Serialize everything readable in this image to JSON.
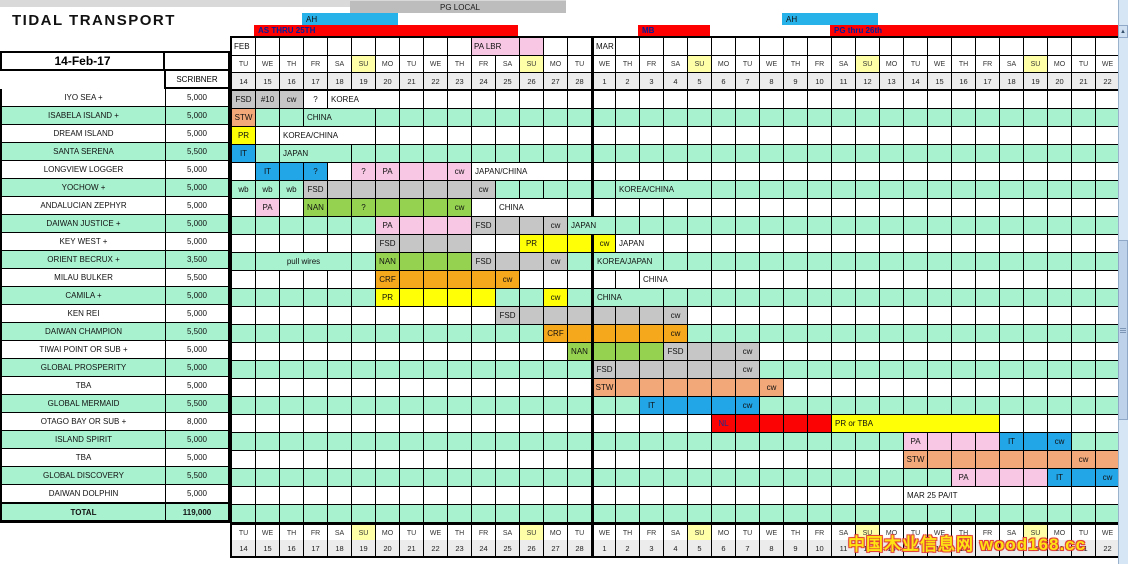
{
  "header": {
    "title": "TIDAL TRANSPORT",
    "date_label": "14-Feb-17",
    "scribner_label": "SCRIBNER"
  },
  "colors": {
    "white": "#ffffff",
    "green": "#a9f2d0",
    "gray": "#c6c6c6",
    "yellow": "#ffff05",
    "pale_yellow": "#ffffa8",
    "olive": "#94d24f",
    "blue": "#22a6e8",
    "pink": "#f7c7e3",
    "orange": "#f6a81c",
    "salmon": "#f2a878",
    "red": "#fb0205",
    "date_gray": "#ececec",
    "bar_gray": "#bdbdbd",
    "bar_blue": "#27b3ea",
    "bar_red": "#fe0000"
  },
  "bars": [
    {
      "label": "PG LOCAL",
      "color": "gray",
      "c0": 5,
      "c1": 13,
      "tier": 0
    },
    {
      "label": "AH",
      "color": "blue",
      "c0": 3,
      "c1": 6,
      "tier": 1
    },
    {
      "label": "AS THRU 25TH",
      "color": "red",
      "c0": 1,
      "c1": 11,
      "tier": 2
    },
    {
      "label": "MB",
      "color": "red",
      "c0": 17,
      "c1": 19,
      "tier": 2
    },
    {
      "label": "AH",
      "color": "blue",
      "c0": 23,
      "c1": 26,
      "tier": 1
    },
    {
      "label": "PG thru 26th",
      "color": "red",
      "c0": 25,
      "c1": 36,
      "tier": 2
    }
  ],
  "month_row": {
    "pa_lbr_label": "PA LBR",
    "pa_lbr_col": 10,
    "pa_lbr_span": 2,
    "extra_pink_col": 12
  },
  "columns": [
    {
      "m": "FEB",
      "d": 14,
      "w": "TU"
    },
    {
      "d": 15,
      "w": "WE"
    },
    {
      "d": 16,
      "w": "TH"
    },
    {
      "d": 17,
      "w": "FR"
    },
    {
      "d": 18,
      "w": "SA"
    },
    {
      "d": 19,
      "w": "SU"
    },
    {
      "d": 20,
      "w": "MO"
    },
    {
      "d": 21,
      "w": "TU"
    },
    {
      "d": 22,
      "w": "WE"
    },
    {
      "d": 23,
      "w": "TH"
    },
    {
      "d": 24,
      "w": "FR"
    },
    {
      "d": 25,
      "w": "SA"
    },
    {
      "d": 26,
      "w": "SU"
    },
    {
      "d": 27,
      "w": "MO"
    },
    {
      "d": 28,
      "w": "TU"
    },
    {
      "m": "MAR",
      "d": 1,
      "w": "WE"
    },
    {
      "d": 2,
      "w": "TH"
    },
    {
      "d": 3,
      "w": "FR"
    },
    {
      "d": 4,
      "w": "SA"
    },
    {
      "d": 5,
      "w": "SU"
    },
    {
      "d": 6,
      "w": "MO"
    },
    {
      "d": 7,
      "w": "TU"
    },
    {
      "d": 8,
      "w": "WE"
    },
    {
      "d": 9,
      "w": "TH"
    },
    {
      "d": 10,
      "w": "FR"
    },
    {
      "d": 11,
      "w": "SA"
    },
    {
      "d": 12,
      "w": "SU"
    },
    {
      "d": 13,
      "w": "MO"
    },
    {
      "d": 14,
      "w": "TU"
    },
    {
      "d": 15,
      "w": "WE"
    },
    {
      "d": 16,
      "w": "TH"
    },
    {
      "d": 17,
      "w": "FR"
    },
    {
      "d": 18,
      "w": "SA"
    },
    {
      "d": 19,
      "w": "SU"
    },
    {
      "d": 20,
      "w": "MO"
    },
    {
      "d": 21,
      "w": "TU"
    },
    {
      "d": 22,
      "w": "WE"
    }
  ],
  "rows": [
    {
      "name": "IYO SEA +",
      "qty": "5,000",
      "bg": "white",
      "fills": [
        {
          "c": 0,
          "t": "FSD",
          "b": "gray"
        },
        {
          "c": 1,
          "t": "#10",
          "b": "gray"
        },
        {
          "c": 2,
          "t": "cw",
          "b": "gray"
        },
        {
          "c": 3,
          "t": "?"
        },
        {
          "c": 4,
          "s": 3,
          "t": "KOREA",
          "a": "l"
        }
      ]
    },
    {
      "name": "ISABELA ISLAND +",
      "qty": "5,000",
      "bg": "green",
      "fills": [
        {
          "c": 0,
          "t": "STW",
          "b": "salmon"
        },
        {
          "c": 3,
          "s": 3,
          "t": "CHINA",
          "a": "l"
        }
      ]
    },
    {
      "name": "DREAM ISLAND",
      "qty": "5,000",
      "bg": "white",
      "fills": [
        {
          "c": 0,
          "t": "PR",
          "b": "yellow"
        },
        {
          "c": 2,
          "s": 4,
          "t": "KOREA/CHINA",
          "a": "l"
        }
      ]
    },
    {
      "name": "SANTA SERENA",
      "qty": "5,500",
      "bg": "green",
      "fills": [
        {
          "c": 0,
          "t": "IT",
          "b": "blue"
        },
        {
          "c": 2,
          "s": 3,
          "t": "JAPAN",
          "a": "l"
        }
      ]
    },
    {
      "name": "LONGVIEW LOGGER",
      "qty": "5,000",
      "bg": "white",
      "fills": [
        {
          "c": 1,
          "t": "IT",
          "b": "blue"
        },
        {
          "c": 2,
          "b": "blue"
        },
        {
          "c": 3,
          "t": "?",
          "b": "blue"
        },
        {
          "c": 5,
          "t": "?",
          "b": "pink"
        },
        {
          "c": 6,
          "t": "PA",
          "b": "pink"
        },
        {
          "c": 7,
          "b": "pink"
        },
        {
          "c": 8,
          "b": "pink"
        },
        {
          "c": 9,
          "t": "cw",
          "b": "pink"
        },
        {
          "c": 10,
          "s": 4,
          "t": "JAPAN/CHINA",
          "a": "l"
        }
      ]
    },
    {
      "name": "YOCHOW +",
      "qty": "5,000",
      "bg": "green",
      "fills": [
        {
          "c": 0,
          "t": "wb"
        },
        {
          "c": 1,
          "t": "wb"
        },
        {
          "c": 2,
          "t": "wb"
        },
        {
          "c": 3,
          "t": "FSD",
          "b": "gray"
        },
        {
          "c": 4,
          "b": "gray"
        },
        {
          "c": 5,
          "b": "gray"
        },
        {
          "c": 6,
          "b": "gray"
        },
        {
          "c": 7,
          "b": "gray"
        },
        {
          "c": 8,
          "b": "gray"
        },
        {
          "c": 9,
          "b": "gray"
        },
        {
          "c": 10,
          "t": "cw",
          "b": "gray"
        },
        {
          "c": 16,
          "s": 4,
          "t": "KOREA/CHINA",
          "a": "l"
        }
      ]
    },
    {
      "name": "ANDALUCIAN ZEPHYR",
      "qty": "5,000",
      "bg": "white",
      "fills": [
        {
          "c": 1,
          "t": "PA",
          "b": "pink"
        },
        {
          "c": 3,
          "t": "NAN",
          "b": "olive"
        },
        {
          "c": 4,
          "b": "olive"
        },
        {
          "c": 5,
          "t": "?",
          "b": "olive"
        },
        {
          "c": 6,
          "b": "olive"
        },
        {
          "c": 7,
          "b": "olive"
        },
        {
          "c": 8,
          "b": "olive"
        },
        {
          "c": 9,
          "t": "cw",
          "b": "olive"
        },
        {
          "c": 11,
          "s": 3,
          "t": "CHINA",
          "a": "l"
        }
      ]
    },
    {
      "name": "DAIWAN JUSTICE +",
      "qty": "5,000",
      "bg": "green",
      "fills": [
        {
          "c": 6,
          "t": "PA",
          "b": "pink"
        },
        {
          "c": 7,
          "b": "pink"
        },
        {
          "c": 8,
          "b": "pink"
        },
        {
          "c": 9,
          "b": "pink"
        },
        {
          "c": 10,
          "t": "FSD",
          "b": "gray"
        },
        {
          "c": 11,
          "b": "gray"
        },
        {
          "c": 12,
          "b": "gray"
        },
        {
          "c": 13,
          "t": "cw",
          "b": "gray"
        },
        {
          "c": 14,
          "s": 2,
          "t": "JAPAN",
          "a": "l"
        }
      ]
    },
    {
      "name": "KEY WEST +",
      "qty": "5,000",
      "bg": "white",
      "fills": [
        {
          "c": 6,
          "t": "FSD",
          "b": "gray"
        },
        {
          "c": 7,
          "b": "gray"
        },
        {
          "c": 8,
          "b": "gray"
        },
        {
          "c": 9,
          "b": "gray"
        },
        {
          "c": 12,
          "t": "PR",
          "b": "yellow"
        },
        {
          "c": 13,
          "b": "yellow"
        },
        {
          "c": 14,
          "b": "yellow"
        },
        {
          "c": 15,
          "t": "cw",
          "b": "yellow"
        },
        {
          "c": 16,
          "s": 2,
          "t": "JAPAN",
          "a": "l"
        }
      ]
    },
    {
      "name": "ORIENT BECRUX +",
      "qty": "3,500",
      "bg": "green",
      "fills": [
        {
          "c": 1,
          "s": 4,
          "t": "pull wires"
        },
        {
          "c": 6,
          "t": "NAN",
          "b": "olive"
        },
        {
          "c": 7,
          "b": "olive"
        },
        {
          "c": 8,
          "b": "olive"
        },
        {
          "c": 9,
          "b": "olive"
        },
        {
          "c": 10,
          "t": "FSD",
          "b": "gray"
        },
        {
          "c": 11,
          "b": "gray"
        },
        {
          "c": 12,
          "b": "gray"
        },
        {
          "c": 13,
          "t": "cw",
          "b": "gray"
        },
        {
          "c": 15,
          "s": 3,
          "t": "KOREA/JAPAN",
          "a": "l"
        }
      ]
    },
    {
      "name": "MILAU BULKER",
      "qty": "5,500",
      "bg": "white",
      "fills": [
        {
          "c": 6,
          "t": "CRF",
          "b": "orange"
        },
        {
          "c": 7,
          "b": "orange"
        },
        {
          "c": 8,
          "b": "orange"
        },
        {
          "c": 9,
          "b": "orange"
        },
        {
          "c": 10,
          "b": "orange"
        },
        {
          "c": 11,
          "t": "cw",
          "b": "orange"
        },
        {
          "c": 17,
          "s": 3,
          "t": "CHINA",
          "a": "l"
        }
      ]
    },
    {
      "name": "CAMILA +",
      "qty": "5,000",
      "bg": "green",
      "fills": [
        {
          "c": 6,
          "t": "PR",
          "b": "yellow"
        },
        {
          "c": 7,
          "b": "yellow"
        },
        {
          "c": 8,
          "b": "yellow"
        },
        {
          "c": 9,
          "b": "yellow"
        },
        {
          "c": 10,
          "b": "yellow"
        },
        {
          "c": 13,
          "t": "cw",
          "b": "yellow"
        },
        {
          "c": 15,
          "s": 3,
          "t": "CHINA",
          "a": "l"
        }
      ]
    },
    {
      "name": "KEN REI",
      "qty": "5,000",
      "bg": "white",
      "fills": [
        {
          "c": 11,
          "t": "FSD",
          "b": "gray"
        },
        {
          "c": 12,
          "b": "gray"
        },
        {
          "c": 13,
          "b": "gray"
        },
        {
          "c": 14,
          "b": "gray"
        },
        {
          "c": 15,
          "b": "gray"
        },
        {
          "c": 16,
          "b": "gray"
        },
        {
          "c": 17,
          "b": "gray"
        },
        {
          "c": 18,
          "t": "cw",
          "b": "gray"
        }
      ]
    },
    {
      "name": "DAIWAN CHAMPION",
      "qty": "5,500",
      "bg": "green",
      "fills": [
        {
          "c": 13,
          "t": "CRF",
          "b": "orange"
        },
        {
          "c": 14,
          "b": "orange"
        },
        {
          "c": 15,
          "b": "orange"
        },
        {
          "c": 16,
          "b": "orange"
        },
        {
          "c": 17,
          "b": "orange"
        },
        {
          "c": 18,
          "t": "cw",
          "b": "orange"
        }
      ]
    },
    {
      "name": "TIWAI POINT OR SUB +",
      "qty": "5,000",
      "bg": "white",
      "fills": [
        {
          "c": 14,
          "t": "NAN",
          "b": "olive"
        },
        {
          "c": 15,
          "b": "olive"
        },
        {
          "c": 16,
          "b": "olive"
        },
        {
          "c": 17,
          "b": "olive"
        },
        {
          "c": 18,
          "t": "FSD",
          "b": "gray"
        },
        {
          "c": 19,
          "b": "gray"
        },
        {
          "c": 20,
          "b": "gray"
        },
        {
          "c": 21,
          "t": "cw",
          "b": "gray"
        }
      ]
    },
    {
      "name": "GLOBAL PROSPERITY",
      "qty": "5,000",
      "bg": "green",
      "fills": [
        {
          "c": 15,
          "t": "FSD",
          "b": "gray"
        },
        {
          "c": 16,
          "b": "gray"
        },
        {
          "c": 17,
          "b": "gray"
        },
        {
          "c": 18,
          "b": "gray"
        },
        {
          "c": 19,
          "b": "gray"
        },
        {
          "c": 20,
          "b": "gray"
        },
        {
          "c": 21,
          "t": "cw",
          "b": "gray"
        }
      ]
    },
    {
      "name": "TBA",
      "qty": "5,000",
      "bg": "white",
      "fills": [
        {
          "c": 15,
          "t": "STW",
          "b": "salmon"
        },
        {
          "c": 16,
          "b": "salmon"
        },
        {
          "c": 17,
          "b": "salmon"
        },
        {
          "c": 18,
          "b": "salmon"
        },
        {
          "c": 19,
          "b": "salmon"
        },
        {
          "c": 20,
          "b": "salmon"
        },
        {
          "c": 21,
          "b": "salmon"
        },
        {
          "c": 22,
          "t": "cw",
          "b": "salmon"
        }
      ]
    },
    {
      "name": "GLOBAL MERMAID",
      "qty": "5,500",
      "bg": "green",
      "fills": [
        {
          "c": 17,
          "t": "IT",
          "b": "blue"
        },
        {
          "c": 18,
          "b": "blue"
        },
        {
          "c": 19,
          "b": "blue"
        },
        {
          "c": 20,
          "b": "blue"
        },
        {
          "c": 21,
          "t": "cw",
          "b": "blue"
        }
      ]
    },
    {
      "name": "OTAGO BAY OR SUB +",
      "qty": "8,000",
      "bg": "white",
      "fills": [
        {
          "c": 20,
          "t": "NL",
          "b": "red"
        },
        {
          "c": 21,
          "b": "red"
        },
        {
          "c": 22,
          "b": "red"
        },
        {
          "c": 23,
          "b": "red"
        },
        {
          "c": 24,
          "b": "red"
        },
        {
          "c": 25,
          "s": 7,
          "t": "PR or TBA",
          "b": "yellow",
          "a": "l"
        }
      ]
    },
    {
      "name": "ISLAND SPIRIT",
      "qty": "5,000",
      "bg": "green",
      "fills": [
        {
          "c": 28,
          "t": "PA",
          "b": "pink"
        },
        {
          "c": 29,
          "b": "pink"
        },
        {
          "c": 30,
          "b": "pink"
        },
        {
          "c": 31,
          "b": "pink"
        },
        {
          "c": 32,
          "t": "IT",
          "b": "blue"
        },
        {
          "c": 33,
          "b": "blue"
        },
        {
          "c": 34,
          "t": "cw",
          "b": "blue"
        }
      ]
    },
    {
      "name": "TBA",
      "qty": "5,000",
      "bg": "white",
      "fills": [
        {
          "c": 28,
          "t": "STW",
          "b": "salmon"
        },
        {
          "c": 29,
          "b": "salmon"
        },
        {
          "c": 30,
          "b": "salmon"
        },
        {
          "c": 31,
          "b": "salmon"
        },
        {
          "c": 32,
          "b": "salmon"
        },
        {
          "c": 33,
          "b": "salmon"
        },
        {
          "c": 34,
          "b": "salmon"
        },
        {
          "c": 35,
          "t": "cw",
          "b": "salmon"
        },
        {
          "c": 36,
          "b": "salmon"
        }
      ]
    },
    {
      "name": "GLOBAL DISCOVERY",
      "qty": "5,500",
      "bg": "green",
      "fills": [
        {
          "c": 30,
          "t": "PA",
          "b": "pink"
        },
        {
          "c": 31,
          "b": "pink"
        },
        {
          "c": 32,
          "b": "pink"
        },
        {
          "c": 33,
          "b": "pink"
        },
        {
          "c": 34,
          "t": "IT",
          "b": "blue"
        },
        {
          "c": 35,
          "b": "blue"
        },
        {
          "c": 36,
          "t": "cw",
          "b": "blue"
        }
      ]
    },
    {
      "name": "DAIWAN DOLPHIN",
      "qty": "5,000",
      "bg": "white",
      "fills": [
        {
          "c": 28,
          "s": 4,
          "t": "MAR 25 PA/IT",
          "a": "l"
        }
      ]
    },
    {
      "name": "TOTAL",
      "qty": "119,000",
      "bg": "green",
      "total": true,
      "fills": []
    }
  ],
  "watermark": {
    "text": "中国木业信息网 wood168.cc"
  }
}
